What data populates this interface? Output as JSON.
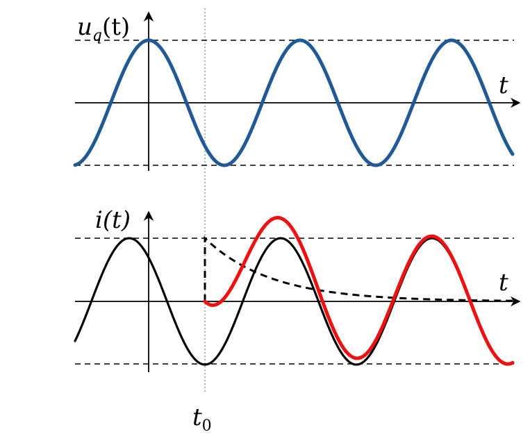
{
  "colors": {
    "voltage": "#1f5a96",
    "current_steady": "#000000",
    "current_total": "#ee1111",
    "axis": "#000000",
    "guides": "#000000",
    "t0_marker": "#999999"
  },
  "top_plot": {
    "y_label_main": "u",
    "y_label_sub": "q",
    "y_label_arg": "(t)",
    "x_label": "t",
    "amplitude": 1,
    "start_phase_deg": 180,
    "period_div_per_cycle": 1,
    "curve": "voltage sinusoid"
  },
  "bottom_plot": {
    "y_label": "i(t)",
    "x_label": "t",
    "amplitude": 1,
    "curves": [
      "steady-state current",
      "DC offset decay",
      "total current"
    ]
  },
  "t0_label_main": "t",
  "t0_label_sub": "0"
}
